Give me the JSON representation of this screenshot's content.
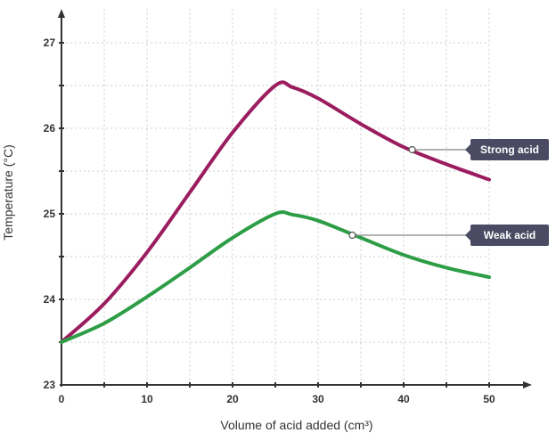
{
  "chart_data": {
    "type": "line",
    "xlabel": "Volume of acid added (cm³)",
    "ylabel": "Temperature (°C)",
    "xlim": [
      0,
      55
    ],
    "ylim": [
      23,
      27.4
    ],
    "x_ticks": [
      0,
      10,
      20,
      30,
      40,
      50
    ],
    "x_tick_labels": [
      "0",
      "10",
      "20",
      "30",
      "40",
      "50"
    ],
    "y_ticks": [
      23,
      24,
      25,
      26,
      27
    ],
    "y_tick_labels": [
      "23",
      "24",
      "25",
      "26",
      "27"
    ],
    "grid": true,
    "colors": {
      "strong": "#9b1d5f",
      "weak": "#2e9e46",
      "axis": "#333333",
      "grid": "#cccccc",
      "callout": "#4a4a63"
    },
    "series": [
      {
        "name": "Strong acid",
        "color": "#9b1d5f",
        "x": [
          0,
          5,
          10,
          15,
          20,
          25,
          27,
          30,
          35,
          40,
          45,
          50
        ],
        "y": [
          23.5,
          23.95,
          24.55,
          25.25,
          25.95,
          26.5,
          26.48,
          26.35,
          26.05,
          25.78,
          25.58,
          25.4
        ]
      },
      {
        "name": "Weak acid",
        "color": "#2e9e46",
        "x": [
          0,
          5,
          10,
          15,
          20,
          25,
          27,
          30,
          35,
          40,
          45,
          50
        ],
        "y": [
          23.5,
          23.72,
          24.03,
          24.37,
          24.72,
          25.0,
          24.99,
          24.92,
          24.72,
          24.52,
          24.37,
          24.26
        ]
      }
    ],
    "annotations": [
      {
        "text": "Strong acid",
        "series": 0,
        "x": 41,
        "y": 25.75
      },
      {
        "text": "Weak acid",
        "series": 1,
        "x": 34,
        "y": 24.75
      }
    ]
  }
}
